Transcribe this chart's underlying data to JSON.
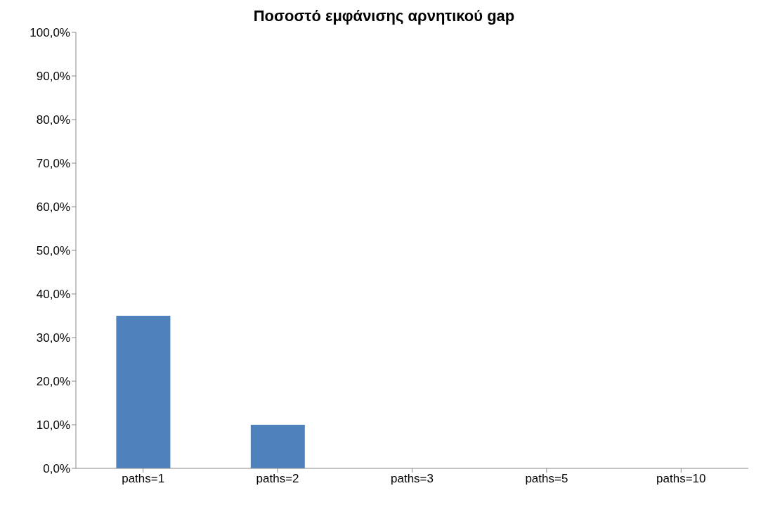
{
  "chart_data": {
    "type": "bar",
    "title": "Ποσοστό εμφάνισης αρνητικού gap",
    "categories": [
      "paths=1",
      "paths=2",
      "paths=3",
      "paths=5",
      "paths=10"
    ],
    "values": [
      35,
      10,
      0,
      0,
      0
    ],
    "color": "#4f81bd",
    "ylim": [
      0,
      100
    ],
    "yticks": [
      {
        "value": 0,
        "label": "0,0%"
      },
      {
        "value": 10,
        "label": "10,0%"
      },
      {
        "value": 20,
        "label": "20,0%"
      },
      {
        "value": 30,
        "label": "30,0%"
      },
      {
        "value": 40,
        "label": "40,0%"
      },
      {
        "value": 50,
        "label": "50,0%"
      },
      {
        "value": 60,
        "label": "60,0%"
      },
      {
        "value": 70,
        "label": "70,0%"
      },
      {
        "value": 80,
        "label": "80,0%"
      },
      {
        "value": 90,
        "label": "90,0%"
      },
      {
        "value": 100,
        "label": "100,0%"
      }
    ],
    "grid": false,
    "legend": false
  }
}
